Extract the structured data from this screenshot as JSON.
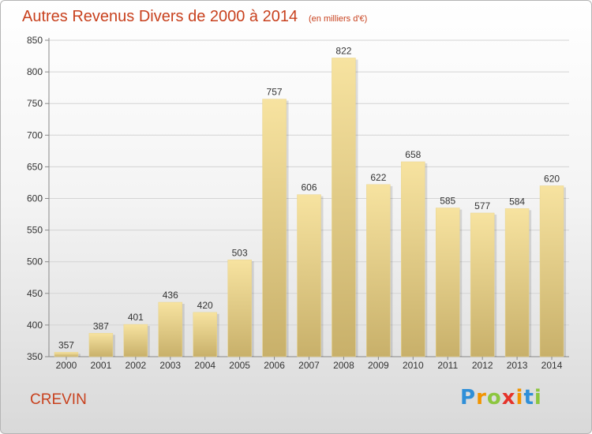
{
  "chart_data": {
    "type": "bar",
    "title": "Autres Revenus Divers de 2000 à 2014",
    "subtitle": "(en milliers d'€)",
    "categories": [
      "2000",
      "2001",
      "2002",
      "2003",
      "2004",
      "2005",
      "2006",
      "2007",
      "2008",
      "2009",
      "2010",
      "2011",
      "2012",
      "2013",
      "2014"
    ],
    "values": [
      357,
      387,
      401,
      436,
      420,
      503,
      757,
      606,
      822,
      622,
      658,
      585,
      577,
      584,
      620
    ],
    "ylim": [
      350,
      850
    ],
    "yticks": [
      350,
      400,
      450,
      500,
      550,
      600,
      650,
      700,
      750,
      800,
      850
    ],
    "grid": true,
    "bar_color_top": "#f7e3a0",
    "bar_color_bottom": "#c8b06a"
  },
  "place": "CREVIN",
  "logo": {
    "letters": [
      "P",
      "r",
      "o",
      "x",
      "i",
      "t",
      "i"
    ],
    "colors": [
      "#2f8fd8",
      "#f29400",
      "#8cc63f",
      "#e5332a",
      "#f29400",
      "#2f8fd8",
      "#8cc63f"
    ]
  }
}
